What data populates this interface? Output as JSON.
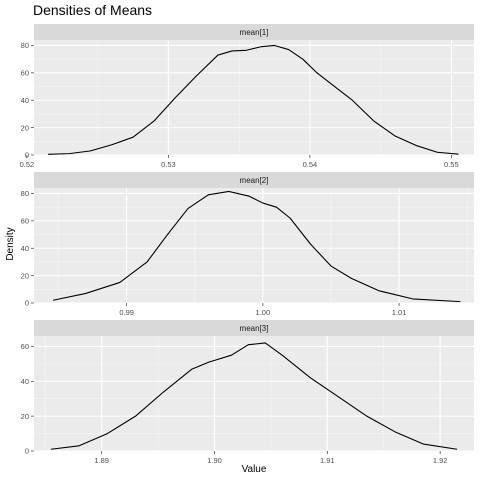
{
  "chart_data": {
    "type": "area",
    "title": "Densities of Means",
    "xlabel": "Value",
    "ylabel": "Density",
    "grid": true,
    "panels": [
      {
        "label": "mean[1]",
        "xlim": [
          0.5205,
          0.5516
        ],
        "ylim": [
          0,
          84
        ],
        "xticks": [
          0.52,
          0.53,
          0.54,
          0.55
        ],
        "xtick_labels": [
          "0.52",
          "0.53",
          "0.54",
          "0.55"
        ],
        "yticks": [
          0,
          20,
          40,
          60,
          80
        ],
        "ytick_labels": [
          "0",
          "20",
          "40",
          "60",
          "80"
        ],
        "x": [
          0.5215,
          0.523,
          0.5245,
          0.526,
          0.5275,
          0.529,
          0.5305,
          0.532,
          0.5335,
          0.5345,
          0.5355,
          0.5365,
          0.5375,
          0.5385,
          0.5395,
          0.5405,
          0.5415,
          0.543,
          0.5445,
          0.546,
          0.5475,
          0.549,
          0.5505
        ],
        "y": [
          0.5,
          1.0,
          3.0,
          7.5,
          13.0,
          25.0,
          42.0,
          58.0,
          73.0,
          76.0,
          76.5,
          79.0,
          80.0,
          77.0,
          70.0,
          60.0,
          52.0,
          40.0,
          25.0,
          14.0,
          7.0,
          2.0,
          0.6
        ]
      },
      {
        "label": "mean[2]",
        "xlim": [
          0.9832,
          1.0155
        ],
        "ylim": [
          0,
          84
        ],
        "xticks": [
          0.99,
          1.0,
          1.01
        ],
        "xtick_labels": [
          "0.99",
          "1.00",
          "1.01"
        ],
        "yticks": [
          0,
          20,
          40,
          60,
          80
        ],
        "ytick_labels": [
          "0",
          "20",
          "40",
          "60",
          "80"
        ],
        "x": [
          0.9846,
          0.987,
          0.9895,
          0.9915,
          0.993,
          0.9945,
          0.996,
          0.9975,
          0.999,
          1.0,
          1.001,
          1.002,
          1.0035,
          1.005,
          1.0065,
          1.0085,
          1.011,
          1.0145
        ],
        "y": [
          2.0,
          7.0,
          15.0,
          30.0,
          50.0,
          69.0,
          79.0,
          81.5,
          78.0,
          73.0,
          70.0,
          62.0,
          43.0,
          27.0,
          18.0,
          9.0,
          3.0,
          1.0
        ]
      },
      {
        "label": "mean[3]",
        "xlim": [
          1.884,
          1.923
        ],
        "ylim": [
          0,
          66
        ],
        "xticks": [
          1.89,
          1.9,
          1.91,
          1.92
        ],
        "xtick_labels": [
          "1.89",
          "1.90",
          "1.91",
          "1.92"
        ],
        "yticks": [
          0,
          20,
          40,
          60
        ],
        "ytick_labels": [
          "0",
          "20",
          "40",
          "60"
        ],
        "x": [
          1.8855,
          1.888,
          1.8905,
          1.893,
          1.8955,
          1.898,
          1.8995,
          1.9015,
          1.903,
          1.9045,
          1.906,
          1.9085,
          1.911,
          1.9135,
          1.916,
          1.9185,
          1.9215
        ],
        "y": [
          1.0,
          3.0,
          10.0,
          20.0,
          34.0,
          47.0,
          51.0,
          55.0,
          61.0,
          62.0,
          55.0,
          42.0,
          31.0,
          20.0,
          11.0,
          4.0,
          1.0
        ]
      }
    ]
  }
}
